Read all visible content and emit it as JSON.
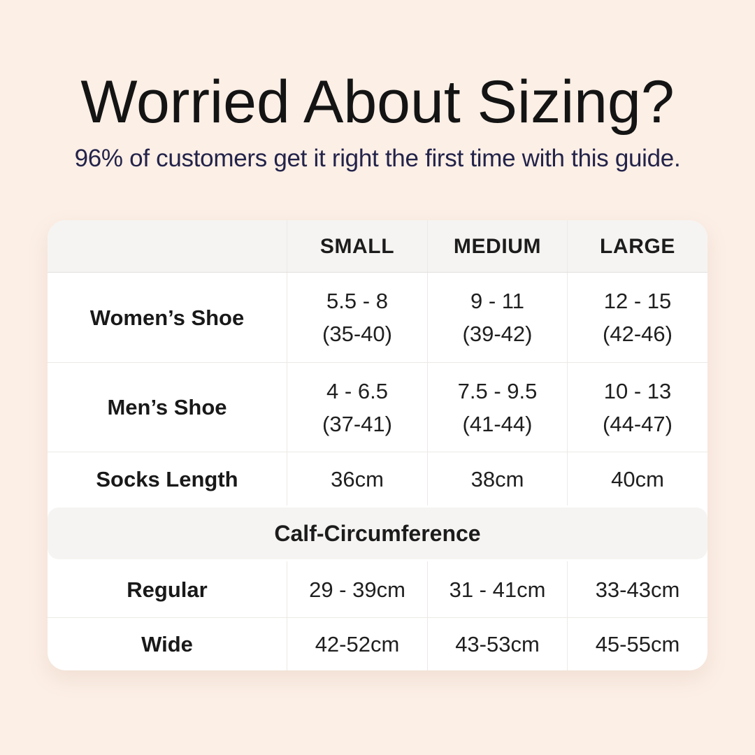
{
  "page": {
    "background_color": "#fcefe6",
    "title": "Worried About Sizing?",
    "title_color": "#141414",
    "subtitle": "96% of customers get it right the first time with this guide.",
    "subtitle_color": "#23234a"
  },
  "table": {
    "style": {
      "card_background": "#ffffff",
      "header_background": "#f5f4f2",
      "divider_color": "#eceae6",
      "text_color": "#1f1f1f"
    },
    "header": {
      "col0": "",
      "col1": "SMALL",
      "col2": "MEDIUM",
      "col3": "LARGE"
    },
    "rows": [
      {
        "label": "Women’s Shoe",
        "cells": [
          {
            "line1": "5.5 - 8",
            "line2": "(35-40)"
          },
          {
            "line1": "9 - 11",
            "line2": "(39-42)"
          },
          {
            "line1": "12 - 15",
            "line2": "(42-46)"
          }
        ]
      },
      {
        "label": "Men’s Shoe",
        "cells": [
          {
            "line1": "4 - 6.5",
            "line2": "(37-41)"
          },
          {
            "line1": "7.5 - 9.5",
            "line2": "(41-44)"
          },
          {
            "line1": "10 - 13",
            "line2": "(44-47)"
          }
        ]
      },
      {
        "label": "Socks Length",
        "cells": [
          {
            "line1": "36cm"
          },
          {
            "line1": "38cm"
          },
          {
            "line1": "40cm"
          }
        ]
      }
    ],
    "section_header": "Calf-Circumference",
    "calf_rows": [
      {
        "label": "Regular",
        "cells": [
          {
            "line1": "29 - 39cm"
          },
          {
            "line1": "31 - 41cm"
          },
          {
            "line1": "33-43cm"
          }
        ]
      },
      {
        "label": "Wide",
        "cells": [
          {
            "line1": "42-52cm"
          },
          {
            "line1": "43-53cm"
          },
          {
            "line1": "45-55cm"
          }
        ]
      }
    ]
  }
}
